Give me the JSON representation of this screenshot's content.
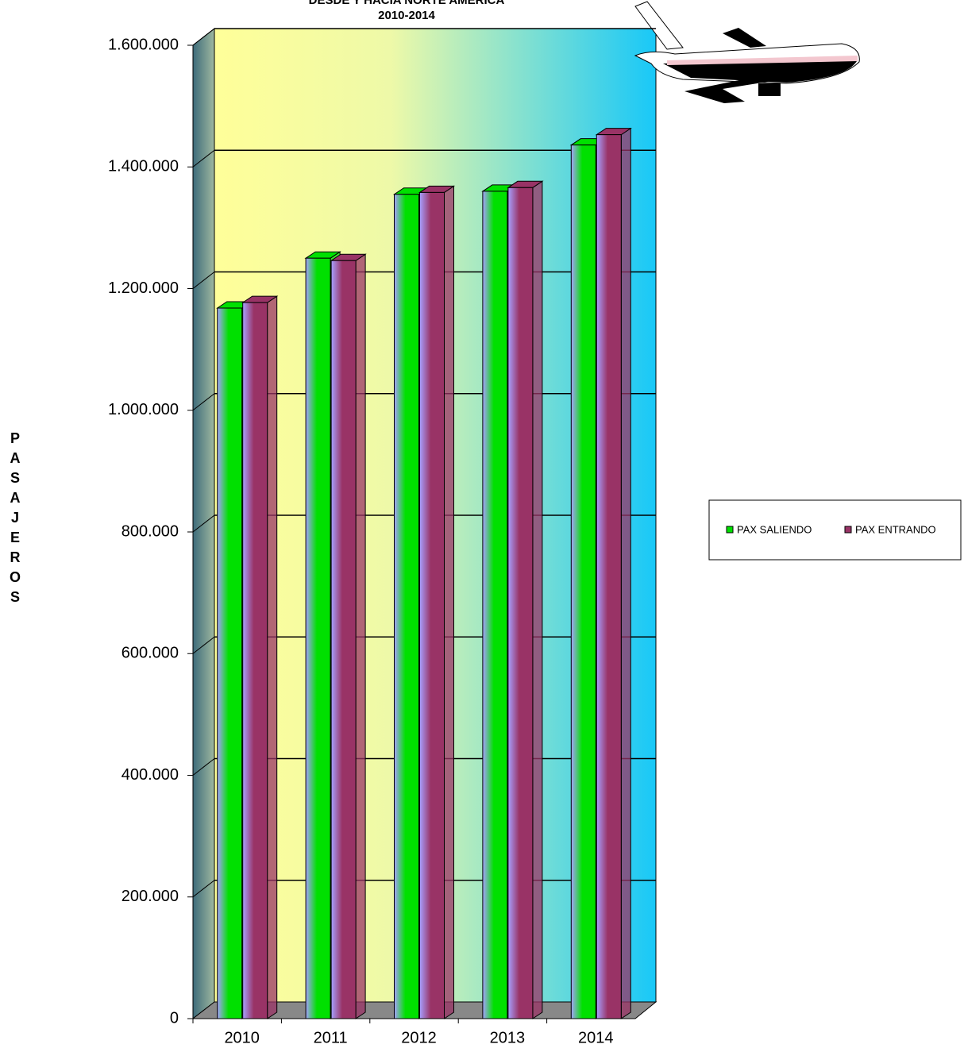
{
  "chart_data": {
    "type": "bar3d",
    "title": "DESDE Y HACIA NORTE AMERICA",
    "subtitle": "2010-2014",
    "y_label": "PASAJEROS",
    "categories": [
      "2010",
      "2011",
      "2012",
      "2013",
      "2014"
    ],
    "series": [
      {
        "name": "PAX SALIENDO",
        "color": "#00e000",
        "values": [
          1168000,
          1250000,
          1355000,
          1360000,
          1436000
        ]
      },
      {
        "name": "PAX ENTRANDO",
        "color": "#993366",
        "values": [
          1177000,
          1246000,
          1358000,
          1366000,
          1453000
        ]
      }
    ],
    "ylim": [
      0,
      1600000
    ],
    "yticks": [
      0,
      {
        "value": 200000,
        "label": "200.000"
      },
      {
        "value": 400000,
        "label": "400.000"
      },
      {
        "value": 600000,
        "label": "600.000"
      },
      {
        "value": 800000,
        "label": "800.000"
      },
      {
        "value": 1000000,
        "label": "1.000.000"
      },
      {
        "value": 1200000,
        "label": "1.200.000"
      },
      {
        "value": 1400000,
        "label": "1.400.000"
      },
      {
        "value": 1600000,
        "label": "1.600.000"
      }
    ],
    "grid": true,
    "legend": "right"
  }
}
